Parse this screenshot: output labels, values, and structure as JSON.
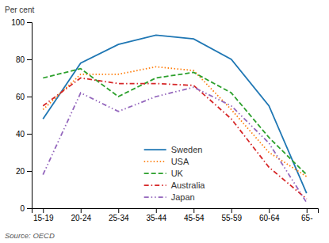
{
  "chart_data": {
    "type": "line",
    "y_label": "Per cent",
    "categories": [
      "15-19",
      "20-24",
      "25-34",
      "35-44",
      "45-54",
      "55-59",
      "60-64",
      "65-"
    ],
    "series": [
      {
        "name": "Sweden",
        "values": [
          48,
          78,
          88,
          93,
          91,
          80,
          55,
          8
        ],
        "line_style": "solid"
      },
      {
        "name": "USA",
        "values": [
          53,
          72,
          72,
          76,
          74,
          53,
          30,
          17
        ],
        "line_style": "dotted"
      },
      {
        "name": "UK",
        "values": [
          70,
          75,
          60,
          70,
          73,
          62,
          38,
          18
        ],
        "line_style": "dashed"
      },
      {
        "name": "Australia",
        "values": [
          55,
          70,
          67,
          67,
          66,
          48,
          22,
          5
        ],
        "line_style": "dashdot"
      },
      {
        "name": "Japan",
        "values": [
          18,
          62,
          52,
          60,
          65,
          55,
          35,
          3
        ],
        "line_style": "dashdotdot"
      }
    ],
    "ylim": [
      0,
      100
    ],
    "yticks": [
      0,
      20,
      40,
      60,
      80,
      100
    ],
    "grid": false,
    "legend": "lower center",
    "annotations": [
      "Source:  OECD"
    ]
  }
}
